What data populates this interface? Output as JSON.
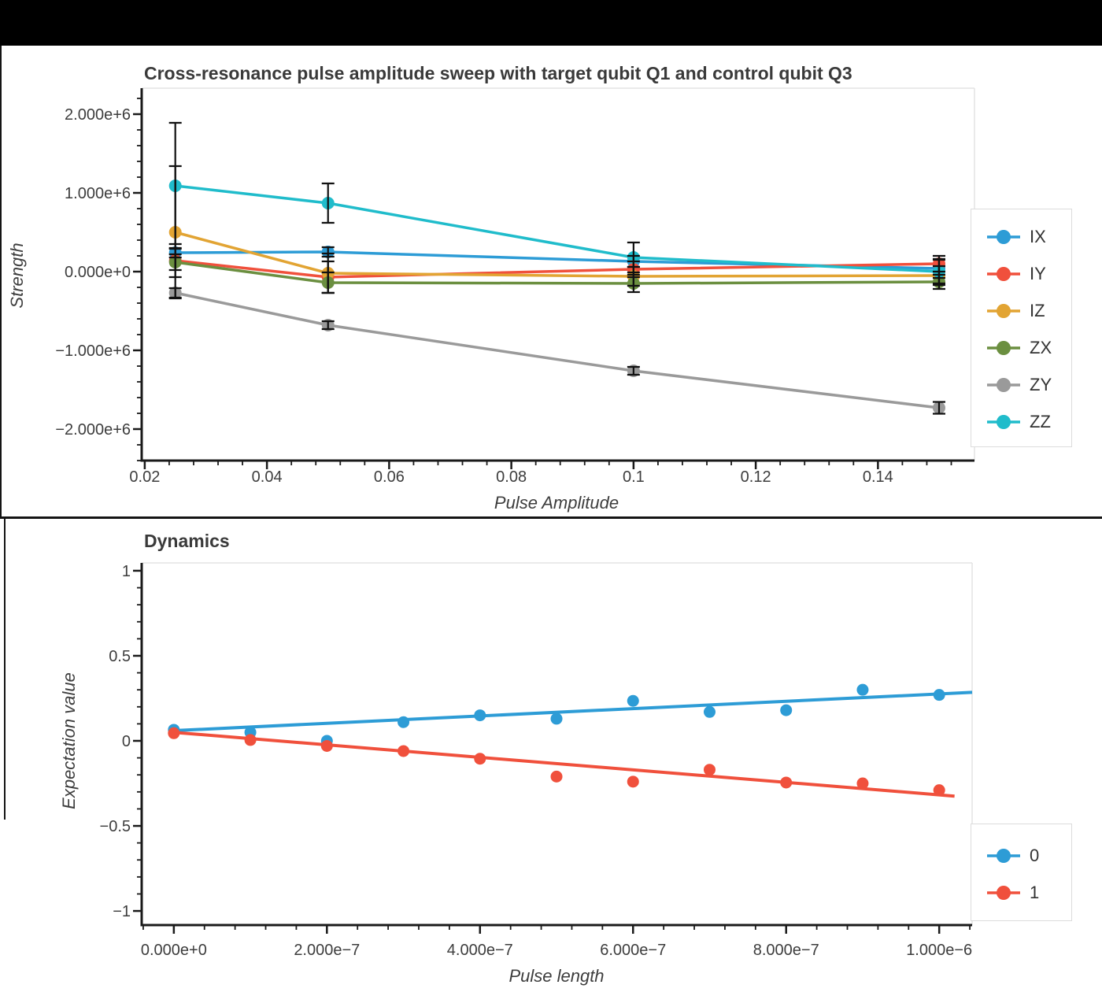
{
  "top_bar": {
    "color": "#000000"
  },
  "chart_data": [
    {
      "type": "line",
      "title": "Cross-resonance pulse amplitude sweep with target qubit Q1 and control qubit Q3",
      "xlabel": "Pulse Amplitude",
      "ylabel": "Strength",
      "x": [
        0.025,
        0.05,
        0.1,
        0.15
      ],
      "series": [
        {
          "name": "IX",
          "color": "#2D9CD6",
          "values": [
            240000,
            250000,
            130000,
            40000
          ],
          "errors": [
            60000,
            60000,
            70000,
            120000
          ]
        },
        {
          "name": "IY",
          "color": "#F0503C",
          "values": [
            140000,
            -70000,
            30000,
            100000
          ],
          "errors": [
            210000,
            200000,
            100000,
            100000
          ]
        },
        {
          "name": "IZ",
          "color": "#E2A433",
          "values": [
            500000,
            -20000,
            -60000,
            -50000
          ],
          "errors": [
            840000,
            250000,
            120000,
            120000
          ]
        },
        {
          "name": "ZX",
          "color": "#6B8F40",
          "values": [
            120000,
            -140000,
            -150000,
            -130000
          ],
          "errors": [
            100000,
            130000,
            110000,
            90000
          ]
        },
        {
          "name": "ZY",
          "color": "#9A9A9A",
          "values": [
            -270000,
            -680000,
            -1260000,
            -1730000
          ],
          "errors": [
            60000,
            50000,
            50000,
            75000
          ]
        },
        {
          "name": "ZZ",
          "color": "#20BCCB",
          "values": [
            1090000,
            870000,
            180000,
            0
          ],
          "errors": [
            800000,
            250000,
            190000,
            150000
          ]
        }
      ],
      "x_ticks": {
        "values": [
          0.02,
          0.04,
          0.06,
          0.08,
          0.1,
          0.12,
          0.14
        ],
        "labels": [
          "0.02",
          "0.04",
          "0.06",
          "0.08",
          "0.1",
          "0.12",
          "0.14"
        ],
        "minor_step": 0.004
      },
      "y_ticks": {
        "values": [
          2000000,
          1000000,
          0,
          -1000000,
          -2000000
        ],
        "labels": [
          "2.000e+6",
          "1.000e+6",
          "0.000e+0",
          "−1.000e+6",
          "−2.000e+6"
        ],
        "minor_step": 200000
      },
      "x_range": [
        0.0195,
        0.1558
      ],
      "y_range": [
        -2400000,
        2330000
      ],
      "grid": "off",
      "legend": {
        "position": "right",
        "entries": [
          "IX",
          "IY",
          "IZ",
          "ZX",
          "ZY",
          "ZZ"
        ]
      }
    },
    {
      "type": "scatter",
      "title": "Dynamics",
      "xlabel": "Pulse length",
      "ylabel": "Expectation value",
      "x": [
        0,
        1e-07,
        2e-07,
        3e-07,
        4e-07,
        5e-07,
        6e-07,
        7e-07,
        8e-07,
        9e-07,
        1e-06
      ],
      "series": [
        {
          "name": "0",
          "color": "#2D9CD6",
          "values": [
            0.065,
            0.05,
            0.0,
            0.11,
            0.15,
            0.13,
            0.235,
            0.17,
            0.18,
            0.3,
            0.27
          ],
          "fit": {
            "x": [
              0,
              1.043e-06
            ],
            "y": [
              0.06,
              0.285
            ]
          }
        },
        {
          "name": "1",
          "color": "#F0503C",
          "values": [
            0.045,
            0.005,
            -0.03,
            -0.06,
            -0.105,
            -0.21,
            -0.24,
            -0.17,
            -0.245,
            -0.25,
            -0.29
          ],
          "fit": {
            "x": [
              0,
              1.02e-06
            ],
            "y": [
              0.05,
              -0.325
            ]
          }
        }
      ],
      "x_ticks": {
        "values": [
          0,
          2e-07,
          4e-07,
          6e-07,
          8e-07,
          1e-06
        ],
        "labels": [
          "0.000e+0",
          "2.000e−7",
          "4.000e−7",
          "6.000e−7",
          "8.000e−7",
          "1.000e−6"
        ],
        "minor_step": 4e-08
      },
      "y_ticks": {
        "values": [
          1,
          0.5,
          0,
          -0.5,
          -1
        ],
        "labels": [
          "1",
          "0.5",
          "0",
          "−0.5",
          "−1"
        ],
        "minor_step": 0.1
      },
      "x_range": [
        -4.2e-08,
        1.043e-06
      ],
      "y_range": [
        -1.083,
        1.046
      ],
      "grid": "off",
      "legend": {
        "position": "right",
        "entries": [
          "0",
          "1"
        ]
      }
    }
  ]
}
